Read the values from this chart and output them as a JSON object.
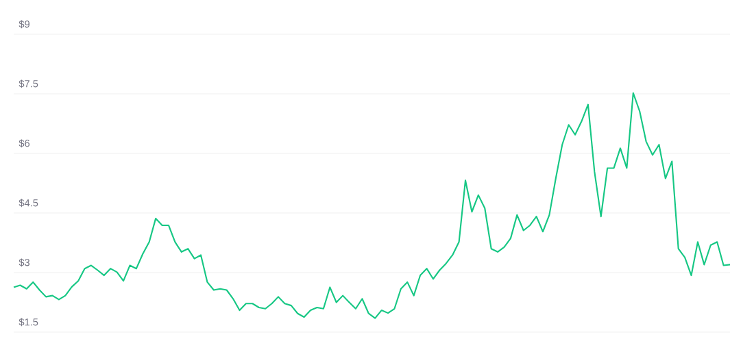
{
  "chart_data": {
    "type": "line",
    "categories": [
      null,
      null,
      null,
      null,
      null,
      null,
      null,
      null,
      null,
      null,
      null,
      null,
      null,
      null,
      null,
      null,
      null,
      null,
      null,
      null,
      null,
      null,
      null,
      null,
      null,
      null,
      null,
      null,
      null,
      null,
      null,
      null,
      null,
      null,
      null,
      null,
      null,
      null,
      null,
      null,
      null,
      null,
      null,
      null,
      null,
      null,
      null,
      null,
      null,
      null,
      null,
      null,
      null,
      null,
      null,
      null,
      null,
      null,
      null,
      null,
      null,
      null,
      null,
      null,
      null,
      null,
      null,
      null,
      null,
      null,
      null,
      null,
      null,
      null,
      null,
      null,
      null,
      null,
      null,
      null,
      null,
      null,
      null,
      null,
      null,
      null,
      null,
      null,
      null,
      null,
      null,
      null,
      null,
      null,
      null,
      null,
      null,
      null,
      null,
      null,
      null,
      null,
      null,
      null,
      null,
      null,
      null,
      null,
      null,
      null,
      null,
      null
    ],
    "series": [
      {
        "color": "#16c784",
        "values": [
          2.63,
          2.68,
          2.59,
          2.76,
          2.56,
          2.39,
          2.42,
          2.32,
          2.42,
          2.64,
          2.79,
          3.1,
          3.18,
          3.06,
          2.93,
          3.1,
          3.01,
          2.79,
          3.18,
          3.1,
          3.47,
          3.77,
          4.36,
          4.19,
          4.19,
          3.77,
          3.52,
          3.6,
          3.35,
          3.44,
          2.76,
          2.56,
          2.59,
          2.56,
          2.34,
          2.05,
          2.22,
          2.22,
          2.12,
          2.09,
          2.22,
          2.39,
          2.22,
          2.17,
          1.97,
          1.88,
          2.05,
          2.12,
          2.09,
          2.63,
          2.25,
          2.42,
          2.25,
          2.09,
          2.34,
          1.97,
          1.85,
          2.05,
          1.98,
          2.09,
          2.59,
          2.76,
          2.42,
          2.93,
          3.1,
          2.84,
          3.06,
          3.23,
          3.44,
          3.77,
          5.32,
          4.53,
          4.95,
          4.62,
          3.6,
          3.52,
          3.64,
          3.86,
          4.45,
          4.06,
          4.19,
          4.41,
          4.03,
          4.45,
          5.37,
          6.22,
          6.72,
          6.47,
          6.81,
          7.23,
          5.54,
          4.41,
          5.63,
          5.63,
          6.13,
          5.63,
          7.52,
          7.06,
          6.3,
          5.96,
          6.22,
          5.37,
          5.8,
          3.6,
          3.38,
          2.93,
          3.77,
          3.2,
          3.69,
          3.77,
          3.18,
          3.2
        ]
      }
    ],
    "ylim": [
      1.5,
      9
    ],
    "yticks": [
      {
        "value": 1.5,
        "label": "$1.5"
      },
      {
        "value": 3,
        "label": "$3"
      },
      {
        "value": 4.5,
        "label": "$4.5"
      },
      {
        "value": 6,
        "label": "$6"
      },
      {
        "value": 7.5,
        "label": "$7.5"
      },
      {
        "value": 9,
        "label": "$9"
      }
    ],
    "grid": "y",
    "tick_labels": "y",
    "line_style": "solid",
    "marker": "none"
  }
}
